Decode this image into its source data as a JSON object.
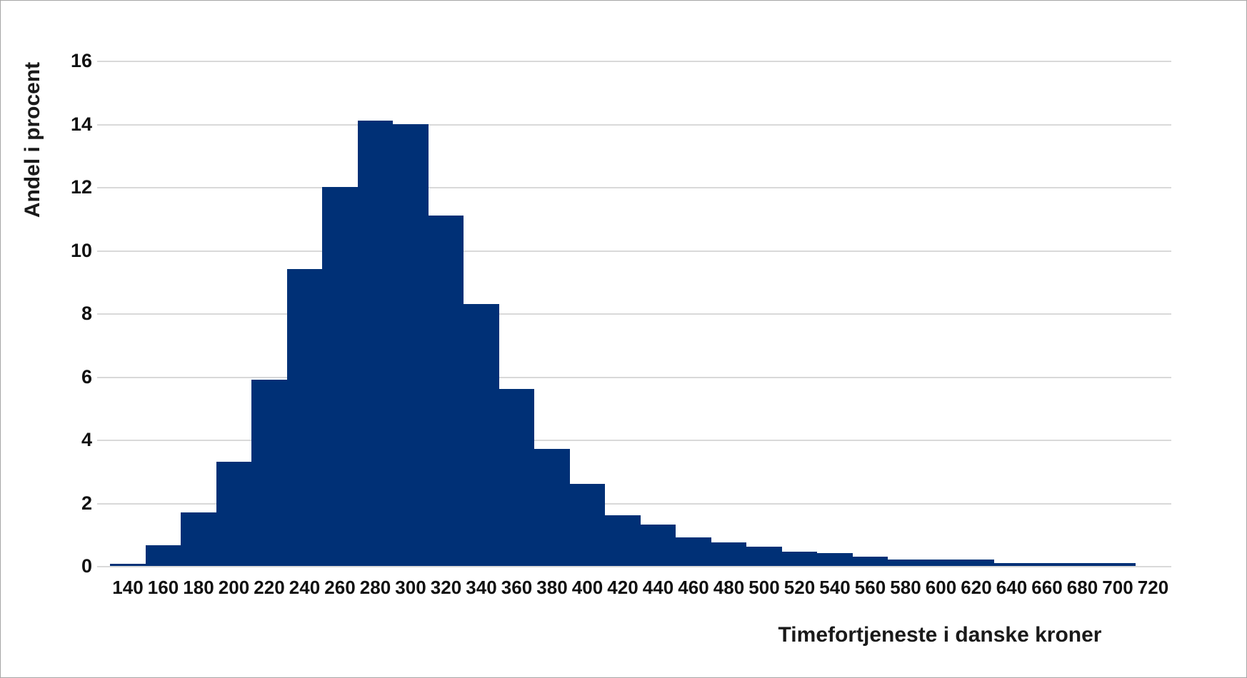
{
  "chart_data": {
    "type": "bar",
    "subtype": "histogram",
    "title": "",
    "xlabel": "Timefortjeneste i danske kroner",
    "ylabel": "Andel i procent",
    "categories": [
      "140",
      "160",
      "180",
      "200",
      "220",
      "240",
      "260",
      "280",
      "300",
      "320",
      "340",
      "360",
      "380",
      "400",
      "420",
      "440",
      "460",
      "480",
      "500",
      "520",
      "540",
      "560",
      "580",
      "600",
      "620",
      "640",
      "660",
      "680",
      "700",
      "720"
    ],
    "values": [
      0.07,
      0.65,
      1.7,
      3.3,
      5.9,
      9.4,
      12.0,
      14.1,
      14.0,
      11.1,
      8.3,
      5.6,
      3.7,
      2.6,
      1.6,
      1.3,
      0.9,
      0.75,
      0.6,
      0.45,
      0.4,
      0.3,
      0.2,
      0.2,
      0.2,
      0.1,
      0.1,
      0.1,
      0.1,
      0
    ],
    "ylim": [
      0,
      16
    ],
    "ytick_step": 2,
    "yticks": [
      0,
      2,
      4,
      6,
      8,
      10,
      12,
      14,
      16
    ],
    "grid": "horizontal",
    "legend_position": "none",
    "bar_color": "#003076",
    "gridline_color": "#d9d9d9",
    "text_color": "#111111",
    "background_color": "#ffffff"
  }
}
